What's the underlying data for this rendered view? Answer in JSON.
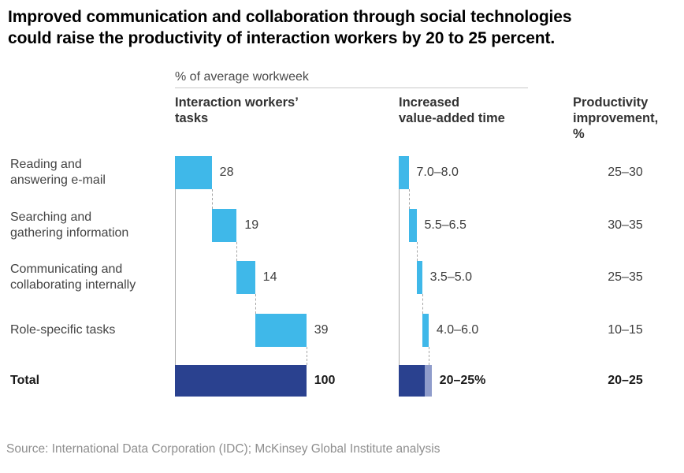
{
  "title": {
    "line1": "Improved communication and collaboration through social technologies",
    "line2": "could raise the productivity of interaction workers by 20 to 25 percent."
  },
  "unit_label": "% of average workweek",
  "columns": {
    "tasks": "Interaction workers’\ntasks",
    "value_added": "Increased\nvalue-added time",
    "productivity": "Productivity\nimprovement,\n%"
  },
  "chart_data": {
    "type": "waterfall",
    "unit": "% of average workweek",
    "series": [
      {
        "task": "Reading and\nanswering e-mail",
        "workweek_pct": 28,
        "value_added_label": "7.0–8.0",
        "value_added_range": [
          7.0,
          8.0
        ],
        "productivity_label": "25–30",
        "productivity_range": [
          25,
          30
        ]
      },
      {
        "task": "Searching and\ngathering information",
        "workweek_pct": 19,
        "value_added_label": "5.5–6.5",
        "value_added_range": [
          5.5,
          6.5
        ],
        "productivity_label": "30–35",
        "productivity_range": [
          30,
          35
        ]
      },
      {
        "task": "Communicating and\ncollaborating internally",
        "workweek_pct": 14,
        "value_added_label": "3.5–5.0",
        "value_added_range": [
          3.5,
          5.0
        ],
        "productivity_label": "25–35",
        "productivity_range": [
          25,
          35
        ]
      },
      {
        "task": "Role-specific tasks",
        "workweek_pct": 39,
        "value_added_label": "4.0–6.0",
        "value_added_range": [
          4.0,
          6.0
        ],
        "productivity_label": "10–15",
        "productivity_range": [
          10,
          15
        ]
      }
    ],
    "total": {
      "task": "Total",
      "workweek_pct": 100,
      "value_added_label": "20–25%",
      "value_added_range": [
        20,
        25
      ],
      "productivity_label": "20–25",
      "productivity_range": [
        20,
        25
      ]
    },
    "colors": {
      "bar": "#3FB8E9",
      "total_bar": "#2A418F",
      "range_overlay": "#8F9CCB"
    }
  },
  "source": "Source: International Data Corporation (IDC); McKinsey Global Institute analysis"
}
